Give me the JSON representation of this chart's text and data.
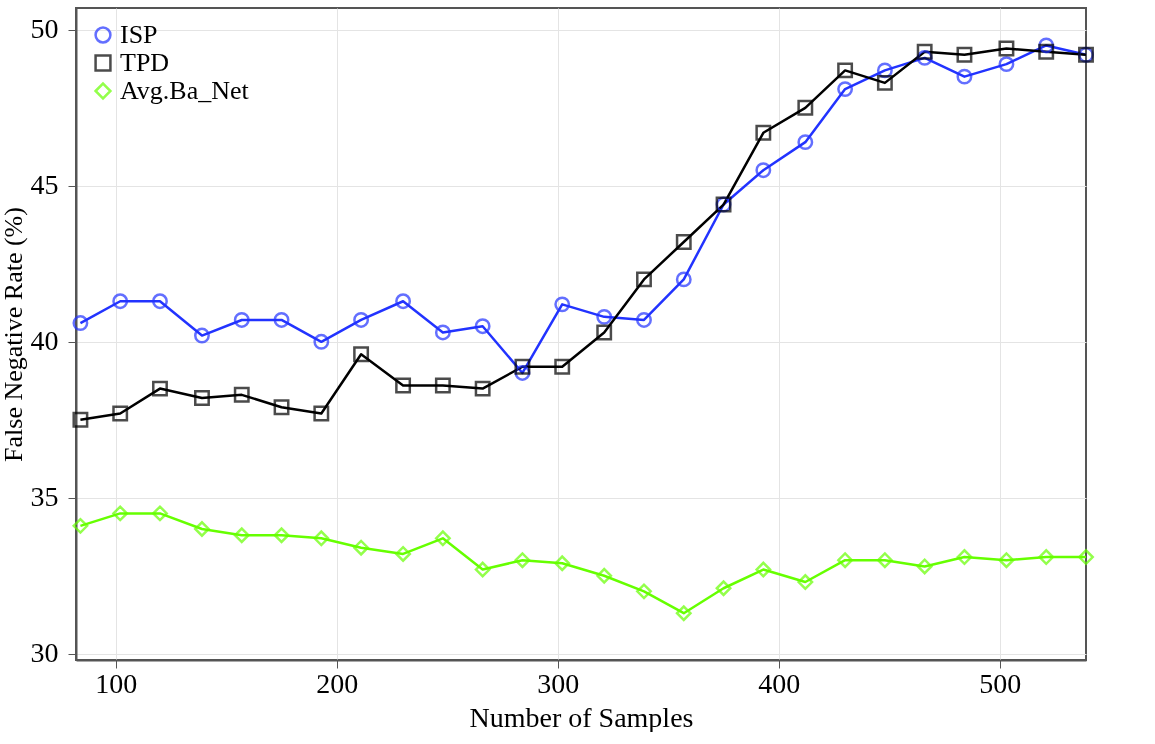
{
  "chart_data": {
    "type": "line",
    "xlabel": "Number of Samples",
    "ylabel": "False Negative Rate (%)",
    "x": [
      84,
      102,
      120,
      139,
      157,
      175,
      193,
      211,
      230,
      248,
      266,
      284,
      302,
      321,
      339,
      357,
      375,
      393,
      412,
      430,
      448,
      466,
      484,
      503,
      521,
      539
    ],
    "xlim": [
      82,
      539
    ],
    "xticks": [
      100,
      200,
      300,
      400,
      500
    ],
    "ylim": [
      29.8,
      50.7
    ],
    "yticks": [
      30,
      35,
      40,
      45,
      50
    ],
    "grid": true,
    "legend": "top left",
    "series": [
      {
        "name": "ISP",
        "color": "#2233ff",
        "marker": "circle",
        "values": [
          40.6,
          41.3,
          41.3,
          40.2,
          40.7,
          40.7,
          40.0,
          40.7,
          41.3,
          40.3,
          40.5,
          39.0,
          41.2,
          40.8,
          40.7,
          42.0,
          44.4,
          45.5,
          46.4,
          48.1,
          48.7,
          49.1,
          48.5,
          48.9,
          49.5,
          49.2
        ]
      },
      {
        "name": "TPD",
        "color": "#000000",
        "marker": "square",
        "values": [
          37.5,
          37.7,
          38.5,
          38.2,
          38.3,
          37.9,
          37.7,
          39.6,
          38.6,
          38.6,
          38.5,
          39.2,
          39.2,
          40.3,
          42.0,
          43.2,
          44.4,
          46.7,
          47.5,
          48.7,
          48.3,
          49.3,
          49.2,
          49.4,
          49.3,
          49.2
        ]
      },
      {
        "name": "Avg.Ba_Net",
        "color": "#66ff00",
        "marker": "diamond",
        "values": [
          34.1,
          34.5,
          34.5,
          34.0,
          33.8,
          33.8,
          33.7,
          33.4,
          33.2,
          33.7,
          32.7,
          33.0,
          32.9,
          32.5,
          32.0,
          31.3,
          32.1,
          32.7,
          32.3,
          33.0,
          33.0,
          32.8,
          33.1,
          33.0,
          33.1,
          33.1
        ]
      }
    ]
  }
}
